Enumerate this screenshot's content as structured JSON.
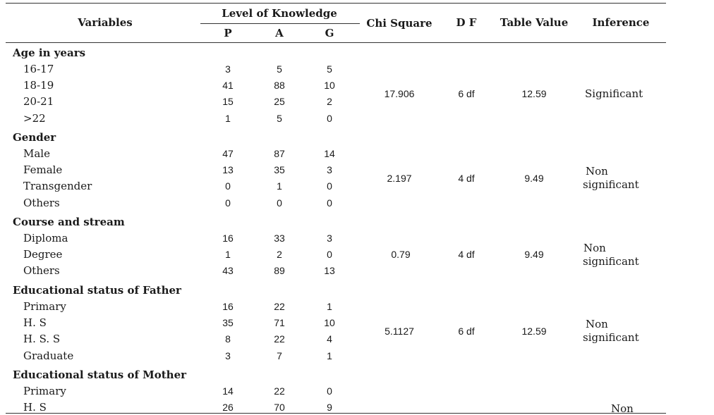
{
  "header": {
    "variables": "Variables",
    "level_of_knowledge": "Level of Knowledge",
    "p": "P",
    "a": "A",
    "g": "G",
    "chi_square": "Chi Square",
    "df": "D F",
    "table_value": "Table Value",
    "inference": "Inference"
  },
  "groups": [
    {
      "title": "Age in years",
      "rows": [
        {
          "label": "16-17",
          "p": "3",
          "a": "5",
          "g": "5"
        },
        {
          "label": "18-19",
          "p": "41",
          "a": "88",
          "g": "10"
        },
        {
          "label": "20-21",
          "p": "15",
          "a": "25",
          "g": "2"
        },
        {
          "label": ">22",
          "p": "1",
          "a": "5",
          "g": "0"
        }
      ],
      "chi_square": "17.906",
      "df": "6 df",
      "table_value": "12.59",
      "inference_line1": "Significant",
      "inference_line2": ""
    },
    {
      "title": "Gender",
      "rows": [
        {
          "label": "Male",
          "p": "47",
          "a": "87",
          "g": "14"
        },
        {
          "label": "Female",
          "p": "13",
          "a": "35",
          "g": "3"
        },
        {
          "label": "Transgender",
          "p": "0",
          "a": "1",
          "g": "0"
        },
        {
          "label": "Others",
          "p": "0",
          "a": "0",
          "g": "0"
        }
      ],
      "chi_square": "2.197",
      "df": "4 df",
      "table_value": "9.49",
      "inference_line1": "Non",
      "inference_line2": "significant"
    },
    {
      "title": "Course and stream",
      "rows": [
        {
          "label": "Diploma",
          "p": "16",
          "a": "33",
          "g": "3"
        },
        {
          "label": "Degree",
          "p": "1",
          "a": "2",
          "g": "0"
        },
        {
          "label": "Others",
          "p": "43",
          "a": "89",
          "g": "13"
        }
      ],
      "chi_square": "0.79",
      "df": "4 df",
      "table_value": "9.49",
      "inference_line1": "Non",
      "inference_line2": "significant"
    },
    {
      "title": "Educational status of Father",
      "rows": [
        {
          "label": "Primary",
          "p": "16",
          "a": "22",
          "g": "1"
        },
        {
          "label": "H. S",
          "p": "35",
          "a": "71",
          "g": "10"
        },
        {
          "label": "H. S. S",
          "p": "8",
          "a": "22",
          "g": "4"
        },
        {
          "label": "Graduate",
          "p": "3",
          "a": "7",
          "g": "1"
        }
      ],
      "chi_square": "5.1127",
      "df": "6 df",
      "table_value": "12.59",
      "inference_line1": "Non",
      "inference_line2": "significant"
    },
    {
      "title": "Educational status of Mother",
      "rows": [
        {
          "label": "Primary",
          "p": "14",
          "a": "22",
          "g": "0"
        },
        {
          "label": "H. S",
          "p": "26",
          "a": "70",
          "g": "9"
        }
      ],
      "chi_square": "",
      "df": "",
      "table_value": "",
      "inference_line1": "Non",
      "inference_line2": ""
    }
  ]
}
